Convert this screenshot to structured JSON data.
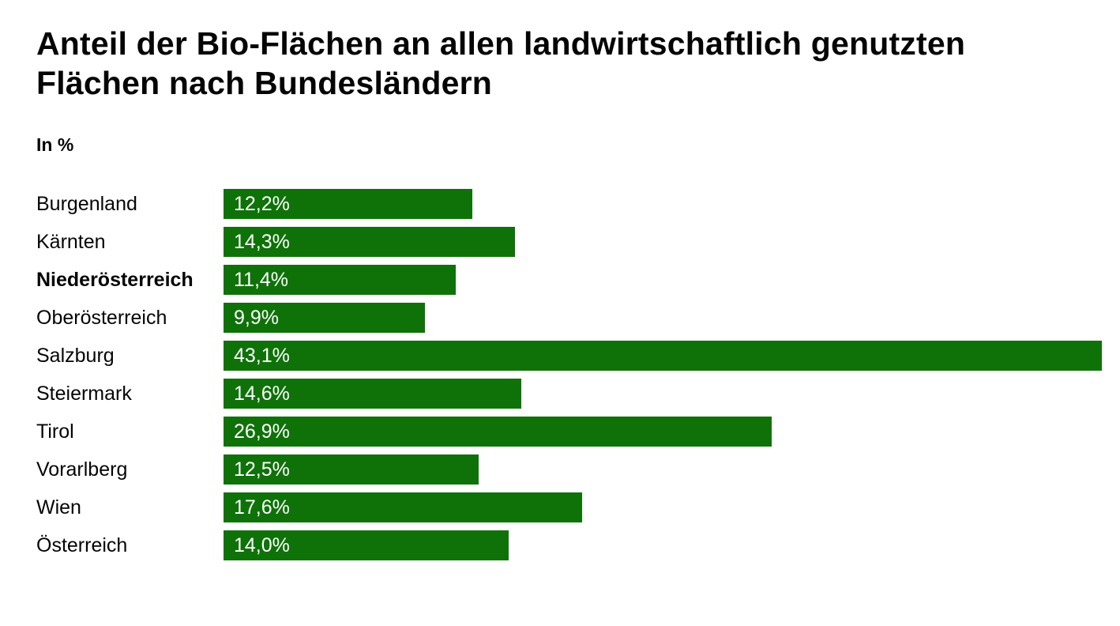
{
  "page": {
    "title": "Anteil der Bio-Flächen an allen landwirtschaftlich genutzten Flächen nach Bundesländern",
    "unit_label": "In %"
  },
  "colors": {
    "bar": "#0f7209",
    "bar_value_text": "#ffffff",
    "text": "#050505",
    "background": "#ffffff"
  },
  "chart_data": {
    "type": "bar",
    "orientation": "horizontal",
    "title": "Anteil der Bio-Flächen an allen landwirtschaftlich genutzten Flächen nach Bundesländern",
    "unit": "In %",
    "categories": [
      "Burgenland",
      "Kärnten",
      "Niederösterreich",
      "Oberösterreich",
      "Salzburg",
      "Steiermark",
      "Tirol",
      "Vorarlberg",
      "Wien",
      "Österreich"
    ],
    "values": [
      12.2,
      14.3,
      11.4,
      9.9,
      43.1,
      14.6,
      26.9,
      12.5,
      17.6,
      14.0
    ],
    "value_labels": [
      "12,2%",
      "14,3%",
      "11,4%",
      "9,9%",
      "43,1%",
      "14,6%",
      "26,9%",
      "12,5%",
      "17,6%",
      "14,0%"
    ],
    "highlighted_category": "Niederösterreich",
    "xlim": [
      0,
      43.1
    ],
    "bar_color": "#0f7209",
    "grid": false,
    "legend": false,
    "value_label_position": "inside-left"
  }
}
